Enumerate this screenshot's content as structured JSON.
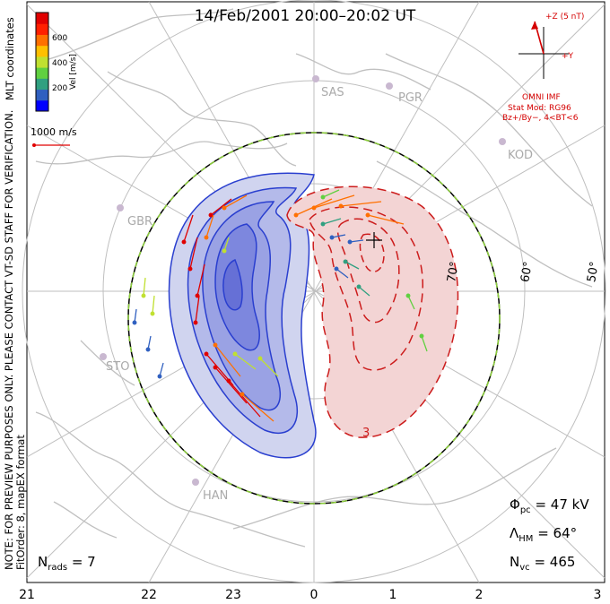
{
  "title": "14/Feb/2001 20:00–20:02 UT",
  "side_note": {
    "line1": "NOTE: FOR PREVIEW PURPOSES ONLY. PLEASE CONTACT VT-SD STAFF FOR VERIFICATION.",
    "line2": "FitOrder: 8, mapEX format",
    "mlt": "MLT coordinates"
  },
  "colorbar": {
    "label": "Vel [m/s]",
    "ticks": [
      "600",
      "400",
      "200"
    ],
    "colors": [
      "#0000ff",
      "#3060c0",
      "#30a080",
      "#60d040",
      "#c0e030",
      "#ffc000",
      "#ff7000",
      "#ff2000",
      "#e00000"
    ]
  },
  "velocity_reference": "1000 m/s",
  "imf": {
    "z_label": "+Z (5 nT)",
    "y_label": "+Y",
    "source": "OMNI IMF",
    "stat_mod": "Stat Mod: RG96",
    "condition": "Bz+/By−, 4<BT<6"
  },
  "stations": [
    "SAS",
    "PGR",
    "KOD",
    "GBR",
    "STO",
    "HAN"
  ],
  "latitude_labels": [
    "70°",
    "60°",
    "50°"
  ],
  "contour_label": "3",
  "stats": {
    "phi_pc_sym": "Φ",
    "phi_pc_sub": "pc",
    "phi_pc_val": "= 47 kV",
    "lambda_sym": "Λ",
    "lambda_sub": "HM",
    "lambda_val": "= 64°",
    "nvc_sym": "N",
    "nvc_sub": "vc",
    "nvc_val": "= 465",
    "nrads_sym": "N",
    "nrads_sub": "rads",
    "nrads_val": "= 7"
  },
  "mlt_ticks": [
    "21",
    "22",
    "23",
    "0",
    "1",
    "2",
    "3"
  ],
  "colors": {
    "negative_cell": "#2a3fcf",
    "positive_cell": "#cc1c1c",
    "coast": "#c0c0c0",
    "grid": "#bfbfbf",
    "hm_boundary_dash": "#8ccf3a"
  }
}
